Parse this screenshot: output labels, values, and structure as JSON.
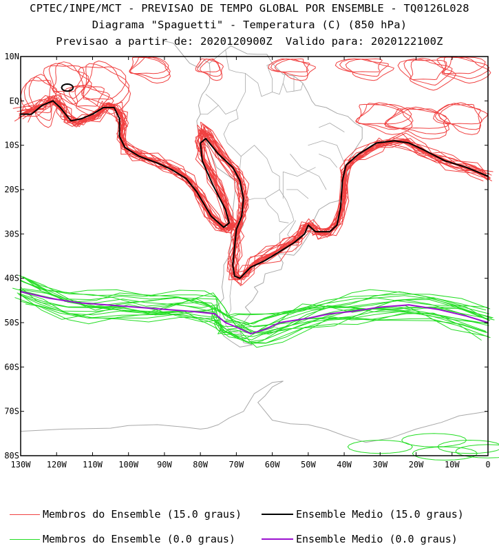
{
  "titles": {
    "line1": "CPTEC/INPE/MCT - PREVISAO DE TEMPO GLOBAL POR ENSEMBLE - TQ0126L028",
    "line2": "Diagrama \"Spaguetti\" - Temperatura (C) (850 hPa)",
    "line3": "Previsao a partir de: 2020120900Z  Valido para: 2020122100Z"
  },
  "axes": {
    "lat_labels": [
      "10N",
      "EQ",
      "10S",
      "20S",
      "30S",
      "40S",
      "50S",
      "60S",
      "70S",
      "80S"
    ],
    "lon_labels": [
      "130W",
      "120W",
      "110W",
      "100W",
      "90W",
      "80W",
      "70W",
      "60W",
      "50W",
      "40W",
      "30W",
      "20W",
      "10W",
      "0"
    ]
  },
  "legend": {
    "members_15": "Membros do Ensemble (15.0 graus)",
    "mean_15": "Ensemble Medio (15.0 graus)",
    "members_0": "Membros do Ensemble (0.0 graus)",
    "mean_0": "Ensemble Medio (0.0 graus)"
  },
  "colors": {
    "member_15": "#f04040",
    "mean_15": "#000000",
    "member_0": "#22dd22",
    "mean_0": "#9a10d0",
    "coast": "#a8a8a8"
  },
  "map_extent": {
    "lon_range": [
      -130,
      0
    ],
    "lat_range": [
      -80,
      10
    ]
  },
  "contour_levels": [
    "15.0 graus",
    "0.0 graus"
  ]
}
